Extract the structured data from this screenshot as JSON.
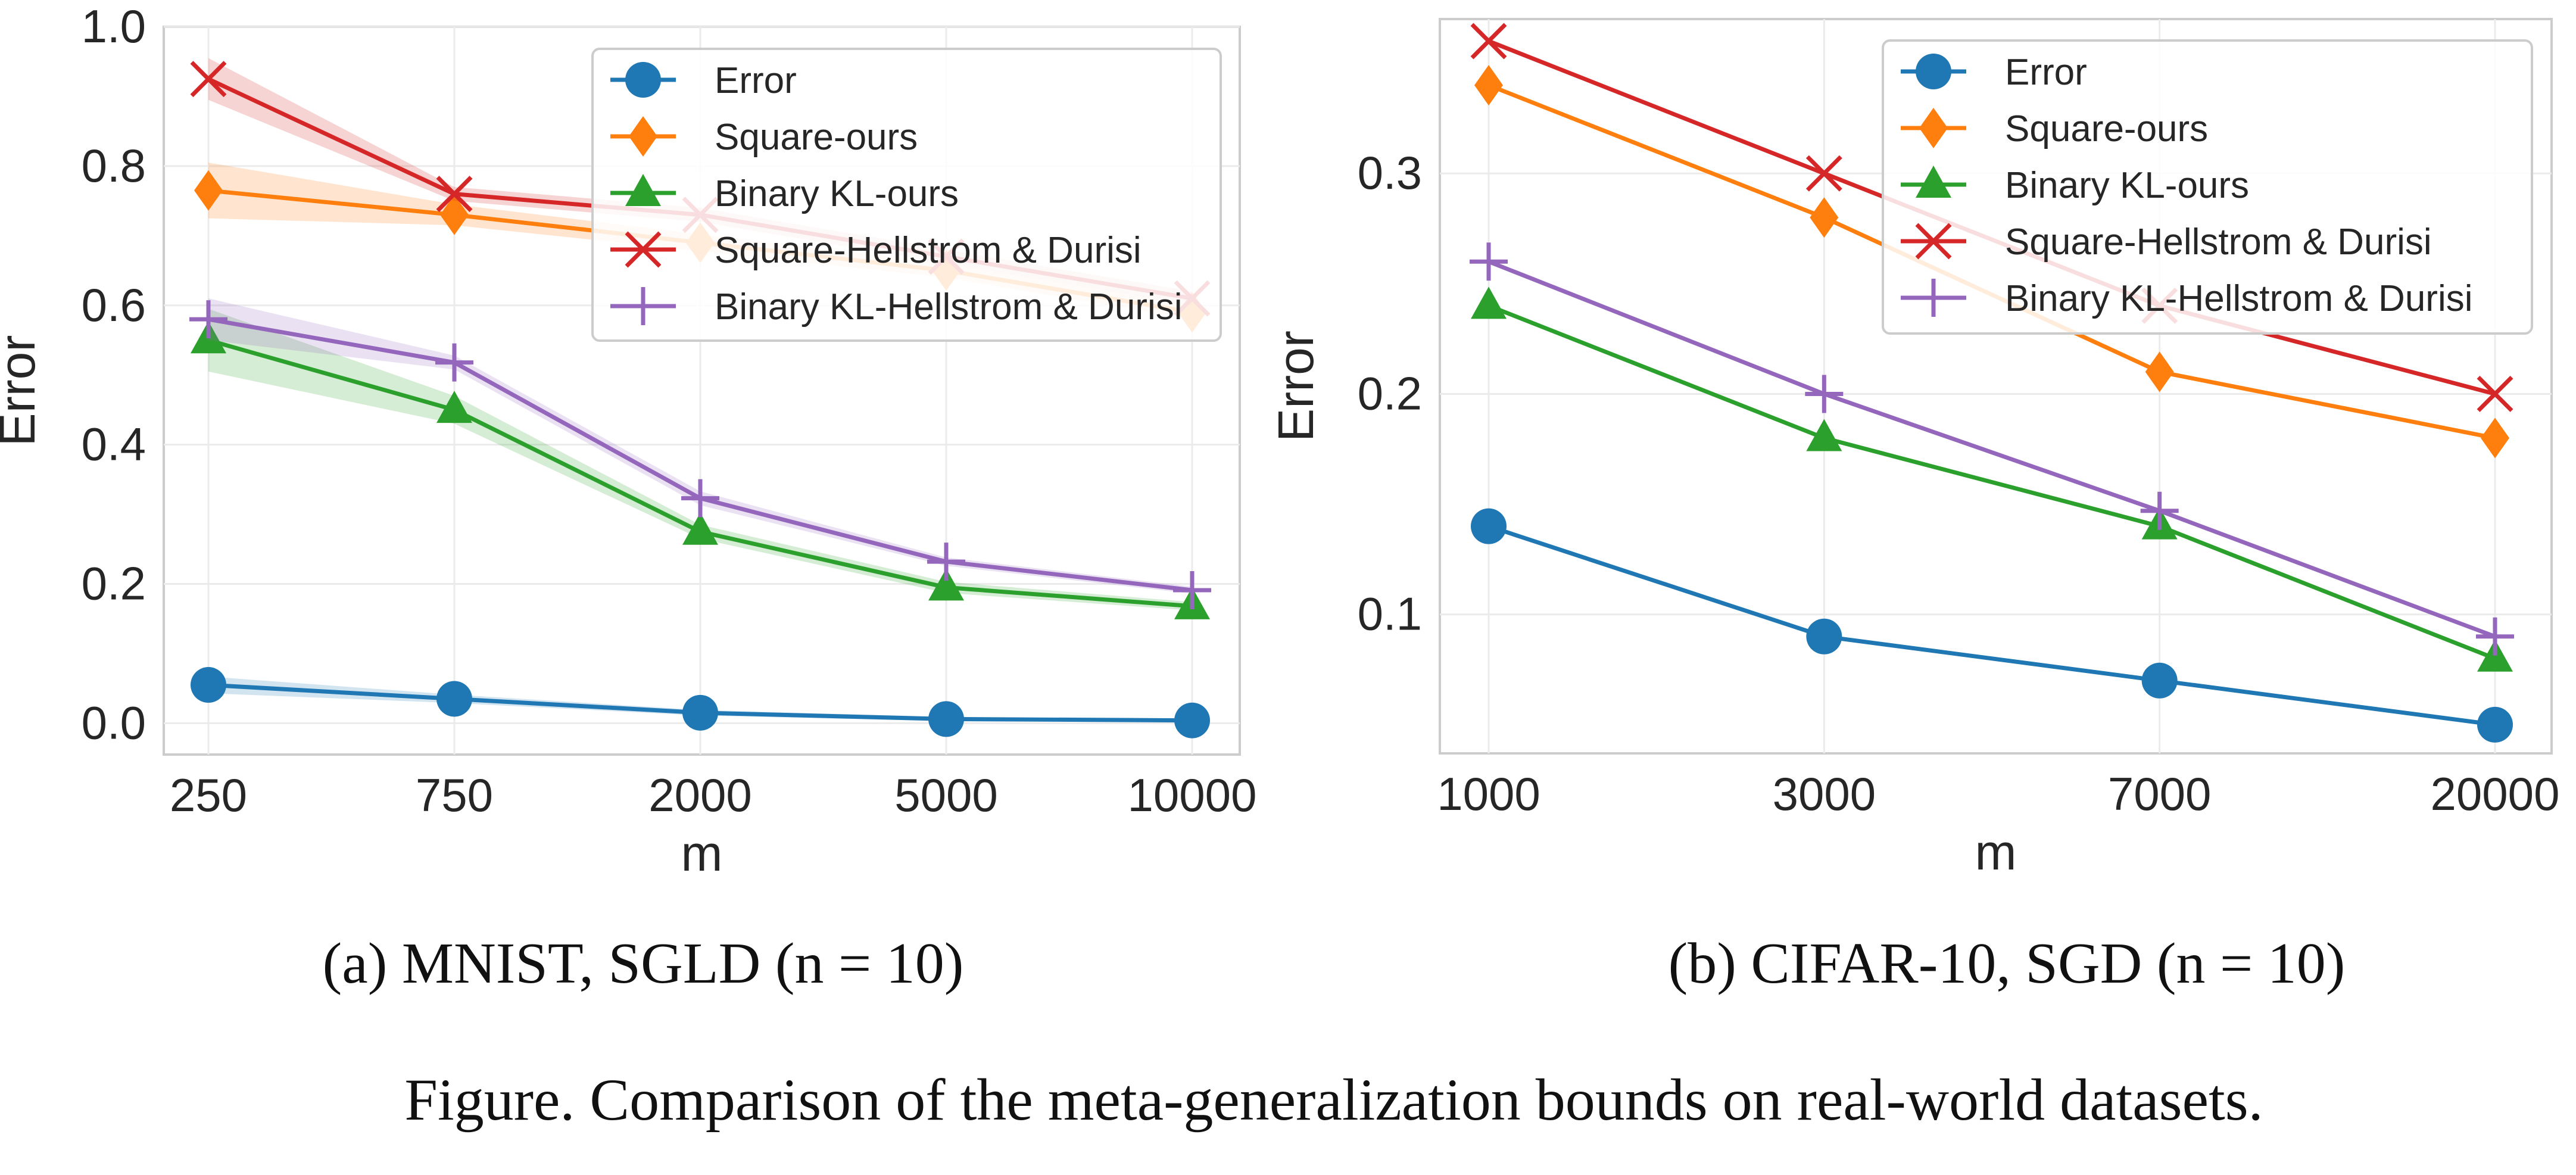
{
  "figure_caption": "Figure. Comparison of the meta-generalization bounds on real-world datasets.",
  "colors": {
    "Error": "#1f77b4",
    "Square-ours": "#ff7f0e",
    "Binary KL-ours": "#2ca02c",
    "Square-Hellstrom & Durisi": "#d62728",
    "Binary KL-Hellstrom & Durisi": "#9467bd"
  },
  "markers": {
    "Error": "circle",
    "Square-ours": "diamond",
    "Binary KL-ours": "triangle",
    "Square-Hellstrom & Durisi": "x",
    "Binary KL-Hellstrom & Durisi": "plus"
  },
  "chart_data": [
    {
      "type": "line",
      "caption": "(a) MNIST, SGLD (n = 10)",
      "xlabel": "m",
      "ylabel": "Error",
      "categories": [
        "250",
        "750",
        "2000",
        "5000",
        "10000"
      ],
      "ylim": [
        -0.045,
        1.0
      ],
      "yticks": [
        "0.0",
        "0.2",
        "0.4",
        "0.6",
        "0.8",
        "1.0"
      ],
      "grid": true,
      "legend": "top-right",
      "series": [
        {
          "name": "Error",
          "values": [
            0.055,
            0.035,
            0.015,
            0.006,
            0.004
          ],
          "band": [
            0.012,
            0.006,
            0.004,
            0.003,
            0.002
          ]
        },
        {
          "name": "Square-ours",
          "values": [
            0.765,
            0.73,
            0.69,
            0.65,
            0.59
          ],
          "band": [
            0.04,
            0.015,
            0.012,
            0.01,
            0.01
          ]
        },
        {
          "name": "Binary KL-ours",
          "values": [
            0.55,
            0.45,
            0.275,
            0.195,
            0.168
          ],
          "band": [
            0.045,
            0.02,
            0.01,
            0.008,
            0.006
          ]
        },
        {
          "name": "Square-Hellstrom & Durisi",
          "values": [
            0.925,
            0.76,
            0.73,
            0.67,
            0.61
          ],
          "band": [
            0.03,
            0.01,
            0.01,
            0.01,
            0.01
          ]
        },
        {
          "name": "Binary KL-Hellstrom & Durisi",
          "values": [
            0.58,
            0.518,
            0.323,
            0.232,
            0.191
          ],
          "band": [
            0.03,
            0.01,
            0.01,
            0.006,
            0.005
          ]
        }
      ]
    },
    {
      "type": "line",
      "caption": "(b) CIFAR-10, SGD (n = 10)",
      "xlabel": "m",
      "ylabel": "Error",
      "categories": [
        "1000",
        "3000",
        "7000",
        "20000"
      ],
      "ylim": [
        0.037,
        0.37
      ],
      "yticks": [
        "0.1",
        "0.2",
        "0.3"
      ],
      "grid": true,
      "legend": "top-right",
      "series": [
        {
          "name": "Error",
          "values": [
            0.14,
            0.09,
            0.07,
            0.05
          ]
        },
        {
          "name": "Square-ours",
          "values": [
            0.34,
            0.28,
            0.21,
            0.18
          ]
        },
        {
          "name": "Binary KL-ours",
          "values": [
            0.24,
            0.18,
            0.14,
            0.08
          ]
        },
        {
          "name": "Square-Hellstrom & Durisi",
          "values": [
            0.36,
            0.3,
            0.24,
            0.2
          ]
        },
        {
          "name": "Binary KL-Hellstrom & Durisi",
          "values": [
            0.26,
            0.2,
            0.147,
            0.09
          ]
        }
      ]
    }
  ]
}
